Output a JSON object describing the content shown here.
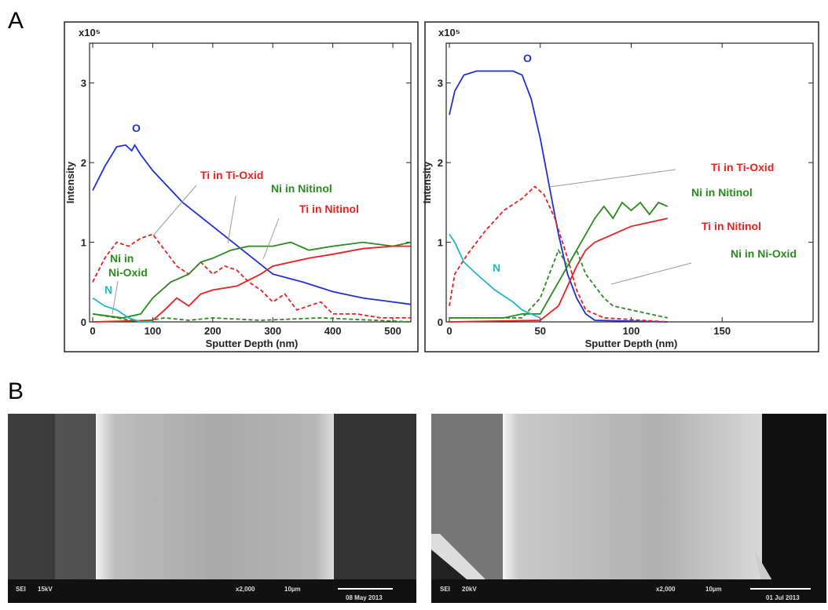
{
  "panels": {
    "a": "A",
    "b": "B"
  },
  "chart_data": [
    {
      "type": "line",
      "multiplier": "x10⁵",
      "x_label": "Sputter Depth (nm)",
      "y_label": "Intensity",
      "xlim": [
        0,
        530
      ],
      "ylim": [
        0,
        3.5
      ],
      "xticks": [
        0,
        100,
        200,
        300,
        400,
        500
      ],
      "yticks": [
        0,
        1,
        2,
        3
      ],
      "series": [
        {
          "name": "O",
          "color": "#1f2fd6",
          "style": "solid",
          "x": [
            0,
            20,
            40,
            55,
            65,
            70,
            80,
            100,
            150,
            200,
            250,
            300,
            350,
            400,
            450,
            500,
            530
          ],
          "values": [
            1.65,
            1.95,
            2.2,
            2.22,
            2.15,
            2.22,
            2.1,
            1.9,
            1.5,
            1.2,
            0.9,
            0.6,
            0.5,
            0.38,
            0.3,
            0.25,
            0.22
          ]
        },
        {
          "name": "Ti in Ti-Oxid",
          "color": "#e8201e",
          "style": "dashed",
          "x": [
            0,
            20,
            40,
            60,
            80,
            100,
            120,
            140,
            160,
            180,
            200,
            220,
            240,
            260,
            280,
            300,
            320,
            340,
            360,
            380,
            400,
            440,
            480,
            530
          ],
          "values": [
            0.5,
            0.8,
            1.0,
            0.95,
            1.05,
            1.1,
            0.9,
            0.7,
            0.6,
            0.75,
            0.6,
            0.7,
            0.65,
            0.5,
            0.4,
            0.25,
            0.35,
            0.15,
            0.2,
            0.25,
            0.1,
            0.1,
            0.05,
            0.05
          ]
        },
        {
          "name": "Ni in Nitinol",
          "color": "#2a8a1e",
          "style": "solid",
          "x": [
            0,
            50,
            80,
            100,
            130,
            160,
            180,
            200,
            230,
            260,
            300,
            330,
            360,
            400,
            450,
            500,
            530
          ],
          "values": [
            0.1,
            0.05,
            0.1,
            0.3,
            0.5,
            0.6,
            0.75,
            0.8,
            0.9,
            0.95,
            0.95,
            1.0,
            0.9,
            0.95,
            1.0,
            0.95,
            1.0
          ]
        },
        {
          "name": "Ti in Nitinol",
          "color": "#e8201e",
          "style": "solid",
          "x": [
            0,
            100,
            120,
            140,
            160,
            180,
            200,
            240,
            280,
            300,
            330,
            360,
            400,
            450,
            500,
            530
          ],
          "values": [
            0.0,
            0.02,
            0.15,
            0.3,
            0.2,
            0.35,
            0.4,
            0.45,
            0.6,
            0.7,
            0.75,
            0.8,
            0.85,
            0.92,
            0.95,
            0.95
          ]
        },
        {
          "name": "Ni in Ni-Oxid",
          "color": "#2a8a1e",
          "style": "dashed",
          "x": [
            0,
            40,
            80,
            120,
            160,
            200,
            280,
            380,
            530
          ],
          "values": [
            0.1,
            0.05,
            0.0,
            0.05,
            0.02,
            0.05,
            0.02,
            0.05,
            0.0
          ]
        },
        {
          "name": "N",
          "color": "#22b8c0",
          "style": "solid",
          "x": [
            0,
            20,
            40,
            60,
            80,
            100
          ],
          "values": [
            0.3,
            0.2,
            0.15,
            0.05,
            0.0,
            0.0
          ]
        }
      ]
    },
    {
      "type": "line",
      "multiplier": "x10⁵",
      "x_label": "Sputter Depth (nm)",
      "y_label": "Intensity",
      "xlim": [
        0,
        200
      ],
      "ylim": [
        0,
        3.5
      ],
      "xticks": [
        0,
        50,
        100,
        150
      ],
      "yticks": [
        0,
        1,
        2,
        3
      ],
      "series": [
        {
          "name": "O",
          "color": "#1f2fd6",
          "style": "solid",
          "x": [
            0,
            3,
            8,
            15,
            25,
            35,
            40,
            45,
            50,
            55,
            60,
            65,
            70,
            75,
            80,
            120
          ],
          "values": [
            2.6,
            2.9,
            3.1,
            3.15,
            3.15,
            3.15,
            3.1,
            2.8,
            2.3,
            1.7,
            1.1,
            0.6,
            0.3,
            0.1,
            0.02,
            0.0
          ]
        },
        {
          "name": "Ti in Ti-Oxid",
          "color": "#e8201e",
          "style": "dashed",
          "x": [
            0,
            3,
            10,
            20,
            30,
            40,
            47,
            52,
            58,
            65,
            70,
            75,
            85,
            120
          ],
          "values": [
            0.2,
            0.6,
            0.85,
            1.15,
            1.4,
            1.55,
            1.7,
            1.6,
            1.3,
            0.8,
            0.4,
            0.15,
            0.05,
            0.0
          ]
        },
        {
          "name": "Ni in Nitinol",
          "color": "#2a8a1e",
          "style": "solid",
          "x": [
            0,
            30,
            40,
            50,
            55,
            60,
            65,
            70,
            75,
            80,
            85,
            90,
            95,
            100,
            105,
            110,
            115,
            120
          ],
          "values": [
            0.05,
            0.05,
            0.1,
            0.1,
            0.3,
            0.5,
            0.7,
            0.9,
            1.1,
            1.3,
            1.45,
            1.3,
            1.5,
            1.4,
            1.5,
            1.35,
            1.5,
            1.45
          ]
        },
        {
          "name": "Ti in Nitinol",
          "color": "#e8201e",
          "style": "solid",
          "x": [
            0,
            50,
            60,
            65,
            70,
            75,
            80,
            90,
            100,
            110,
            120
          ],
          "values": [
            0.0,
            0.02,
            0.2,
            0.45,
            0.7,
            0.9,
            1.0,
            1.1,
            1.2,
            1.25,
            1.3
          ]
        },
        {
          "name": "Ni in Ni-Oxid",
          "color": "#2a8a1e",
          "style": "dashed",
          "x": [
            0,
            40,
            50,
            55,
            60,
            65,
            70,
            75,
            80,
            85,
            90,
            100,
            110,
            120
          ],
          "values": [
            0.05,
            0.05,
            0.3,
            0.6,
            0.9,
            0.7,
            0.9,
            0.6,
            0.45,
            0.3,
            0.2,
            0.15,
            0.1,
            0.05
          ]
        },
        {
          "name": "N",
          "color": "#22b8c0",
          "style": "solid",
          "x": [
            0,
            3,
            8,
            15,
            25,
            35,
            40,
            45,
            50
          ],
          "values": [
            1.1,
            1.0,
            0.75,
            0.6,
            0.4,
            0.25,
            0.15,
            0.1,
            0.05
          ]
        }
      ]
    }
  ],
  "images": [
    {
      "mode": "SEI",
      "voltage": "15kV",
      "magnification": "x2,000",
      "scale": "10µm",
      "date": "08 May 2013"
    },
    {
      "mode": "SEI",
      "voltage": "20kV",
      "magnification": "x2,000",
      "scale": "10µm",
      "date": "01 Jul 2013"
    }
  ]
}
